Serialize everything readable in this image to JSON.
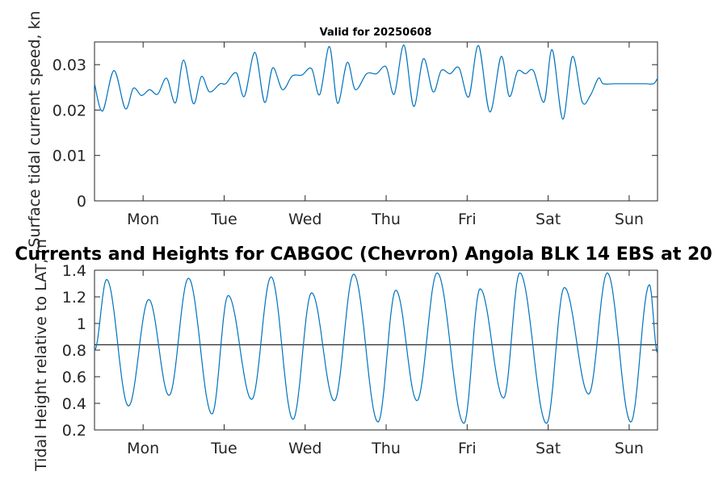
{
  "figure": {
    "background": "#ffffff",
    "line_color": "#0072BD",
    "axis_color": "#262626",
    "reference_line_color": "#000000"
  },
  "chart_data": [
    {
      "type": "line",
      "title": "Valid for 20250608",
      "xlabel": "",
      "ylabel": "Surface tidal current speed, kn",
      "categories": [
        "Mon",
        "Tue",
        "Wed",
        "Thu",
        "Fri",
        "Sat",
        "Sun"
      ],
      "xlim": [
        -0.6,
        6.35
      ],
      "ylim": [
        0,
        0.035
      ],
      "yticks": [
        0,
        0.01,
        0.02,
        0.03
      ],
      "ytick_labels": [
        "0",
        "0.01",
        "0.02",
        "0.03"
      ],
      "series": [
        {
          "x": [
            -0.6,
            -0.5,
            -0.36,
            -0.22,
            -0.12,
            -0.02,
            0.08,
            0.18,
            0.29,
            0.4,
            0.5,
            0.62,
            0.72,
            0.82,
            0.95,
            1.02,
            1.15,
            1.25,
            1.38,
            1.5,
            1.6,
            1.72,
            1.84,
            1.96,
            2.08,
            2.18,
            2.3,
            2.4,
            2.52,
            2.62,
            2.76,
            2.88,
            3.0,
            3.1,
            3.22,
            3.34,
            3.46,
            3.58,
            3.68,
            3.79,
            3.9,
            4.02,
            4.14,
            4.28,
            4.42,
            4.52,
            4.62,
            4.72,
            4.82,
            4.95,
            5.05,
            5.18,
            5.3,
            5.42,
            5.52,
            5.62,
            5.68,
            5.82,
            5.96,
            6.1,
            6.2,
            6.3,
            6.35
          ],
          "values": [
            0.0258,
            0.0198,
            0.0287,
            0.0203,
            0.0248,
            0.0232,
            0.0245,
            0.0235,
            0.027,
            0.0216,
            0.031,
            0.0214,
            0.0274,
            0.024,
            0.0258,
            0.0258,
            0.0282,
            0.023,
            0.0327,
            0.0217,
            0.0293,
            0.0245,
            0.0275,
            0.0277,
            0.0291,
            0.0234,
            0.034,
            0.0215,
            0.0305,
            0.0245,
            0.028,
            0.028,
            0.0295,
            0.0235,
            0.0343,
            0.0208,
            0.0313,
            0.024,
            0.0287,
            0.028,
            0.0293,
            0.0229,
            0.0342,
            0.0196,
            0.0318,
            0.023,
            0.0285,
            0.028,
            0.0286,
            0.0218,
            0.0333,
            0.018,
            0.0318,
            0.0218,
            0.0232,
            0.027,
            0.0258,
            0.0258,
            0.0258,
            0.0258,
            0.0258,
            0.0258,
            0.027
          ]
        }
      ]
    },
    {
      "type": "line",
      "title": "Currents and Heights for CABGOC (Chevron)  Angola BLK 14  EBS at 20",
      "xlabel": "",
      "ylabel": "Tidal Height relative to LAT, m",
      "categories": [
        "Mon",
        "Tue",
        "Wed",
        "Thu",
        "Fri",
        "Sat",
        "Sun"
      ],
      "xlim": [
        -0.6,
        6.35
      ],
      "ylim": [
        0.2,
        1.4
      ],
      "yticks": [
        0.2,
        0.4,
        0.6,
        0.8,
        1.0,
        1.2,
        1.4
      ],
      "ytick_labels": [
        "0.2",
        "0.4",
        "0.6",
        "0.8",
        "1",
        "1.2",
        "1.4"
      ],
      "reference_line": 0.84,
      "series": [
        {
          "extrema_x": [
            -0.6,
            -0.45,
            -0.18,
            0.07,
            0.32,
            0.56,
            0.85,
            1.05,
            1.34,
            1.58,
            1.85,
            2.08,
            2.36,
            2.6,
            2.9,
            3.12,
            3.38,
            3.63,
            3.96,
            4.16,
            4.45,
            4.65,
            4.98,
            5.2,
            5.5,
            5.73,
            6.02,
            6.25,
            6.35
          ],
          "extrema_y": [
            0.8,
            1.33,
            0.38,
            1.18,
            0.46,
            1.34,
            0.32,
            1.21,
            0.43,
            1.35,
            0.28,
            1.23,
            0.42,
            1.37,
            0.26,
            1.25,
            0.42,
            1.38,
            0.25,
            1.26,
            0.44,
            1.38,
            0.25,
            1.27,
            0.47,
            1.38,
            0.26,
            1.29,
            0.78
          ]
        }
      ]
    }
  ]
}
